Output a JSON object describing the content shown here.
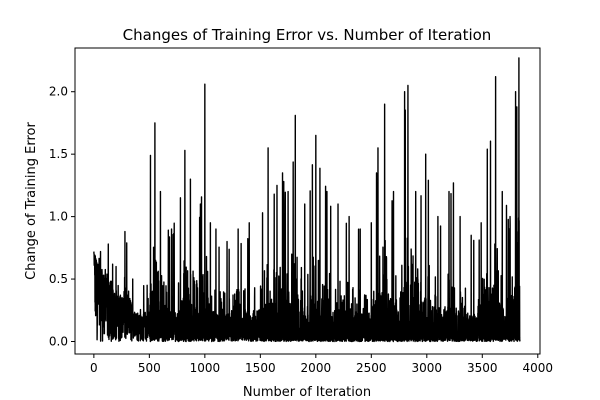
{
  "chart_data": {
    "type": "line",
    "title": "Changes of Training Error vs. Number of Iteration",
    "xlabel": "Number of Iteration",
    "ylabel": "Change of Training Error",
    "xlim": [
      -170,
      4020
    ],
    "ylim": [
      -0.1,
      2.35
    ],
    "xticks": [
      0,
      500,
      1000,
      1500,
      2000,
      2500,
      3000,
      3500,
      4000
    ],
    "yticks": [
      0.0,
      0.5,
      1.0,
      1.5,
      2.0
    ],
    "xtick_labels": [
      "0",
      "500",
      "1000",
      "1500",
      "2000",
      "2500",
      "3000",
      "3500",
      "4000"
    ],
    "ytick_labels": [
      "0.0",
      "0.5",
      "1.0",
      "1.5",
      "2.0"
    ],
    "grid": false,
    "legend": "none",
    "line_color": "#000000",
    "series": [
      {
        "n_points": 3840,
        "description_of_trend": "noisy oscillation; early values ~0.7 decaying to ~0.1 by ~500 iterations, then repeated spikes",
        "baseline_points": [
          [
            0,
            0.7
          ],
          [
            50,
            0.55
          ],
          [
            100,
            0.45
          ],
          [
            200,
            0.3
          ],
          [
            300,
            0.2
          ],
          [
            400,
            0.15
          ],
          [
            500,
            0.08
          ],
          [
            1000,
            0.05
          ],
          [
            2000,
            0.04
          ],
          [
            3000,
            0.04
          ],
          [
            3840,
            0.04
          ]
        ],
        "envelope_points": [
          [
            0,
            0.72
          ],
          [
            60,
            0.72
          ],
          [
            130,
            0.78
          ],
          [
            200,
            0.6
          ],
          [
            280,
            0.88
          ],
          [
            350,
            0.5
          ],
          [
            480,
            0.45
          ],
          [
            510,
            1.49
          ],
          [
            550,
            1.75
          ],
          [
            600,
            1.2
          ],
          [
            700,
            0.9
          ],
          [
            780,
            1.15
          ],
          [
            820,
            1.53
          ],
          [
            870,
            1.3
          ],
          [
            960,
            1.1
          ],
          [
            1000,
            2.06
          ],
          [
            1050,
            0.95
          ],
          [
            1100,
            0.9
          ],
          [
            1200,
            0.8
          ],
          [
            1300,
            0.9
          ],
          [
            1400,
            0.95
          ],
          [
            1520,
            1.03
          ],
          [
            1570,
            1.55
          ],
          [
            1650,
            1.25
          ],
          [
            1700,
            1.35
          ],
          [
            1750,
            1.2
          ],
          [
            1815,
            1.81
          ],
          [
            1900,
            1.1
          ],
          [
            2000,
            1.65
          ],
          [
            2100,
            1.2
          ],
          [
            2200,
            1.1
          ],
          [
            2300,
            1.0
          ],
          [
            2400,
            0.9
          ],
          [
            2500,
            0.95
          ],
          [
            2560,
            1.55
          ],
          [
            2620,
            1.9
          ],
          [
            2700,
            1.2
          ],
          [
            2800,
            2.0
          ],
          [
            2830,
            2.05
          ],
          [
            2900,
            1.2
          ],
          [
            2990,
            1.5
          ],
          [
            3100,
            1.0
          ],
          [
            3200,
            1.2
          ],
          [
            3240,
            1.27
          ],
          [
            3300,
            1.0
          ],
          [
            3400,
            0.85
          ],
          [
            3490,
            0.95
          ],
          [
            3545,
            1.54
          ],
          [
            3620,
            2.12
          ],
          [
            3680,
            1.2
          ],
          [
            3750,
            1.0
          ],
          [
            3800,
            2.0
          ],
          [
            3830,
            2.27
          ]
        ]
      }
    ]
  }
}
